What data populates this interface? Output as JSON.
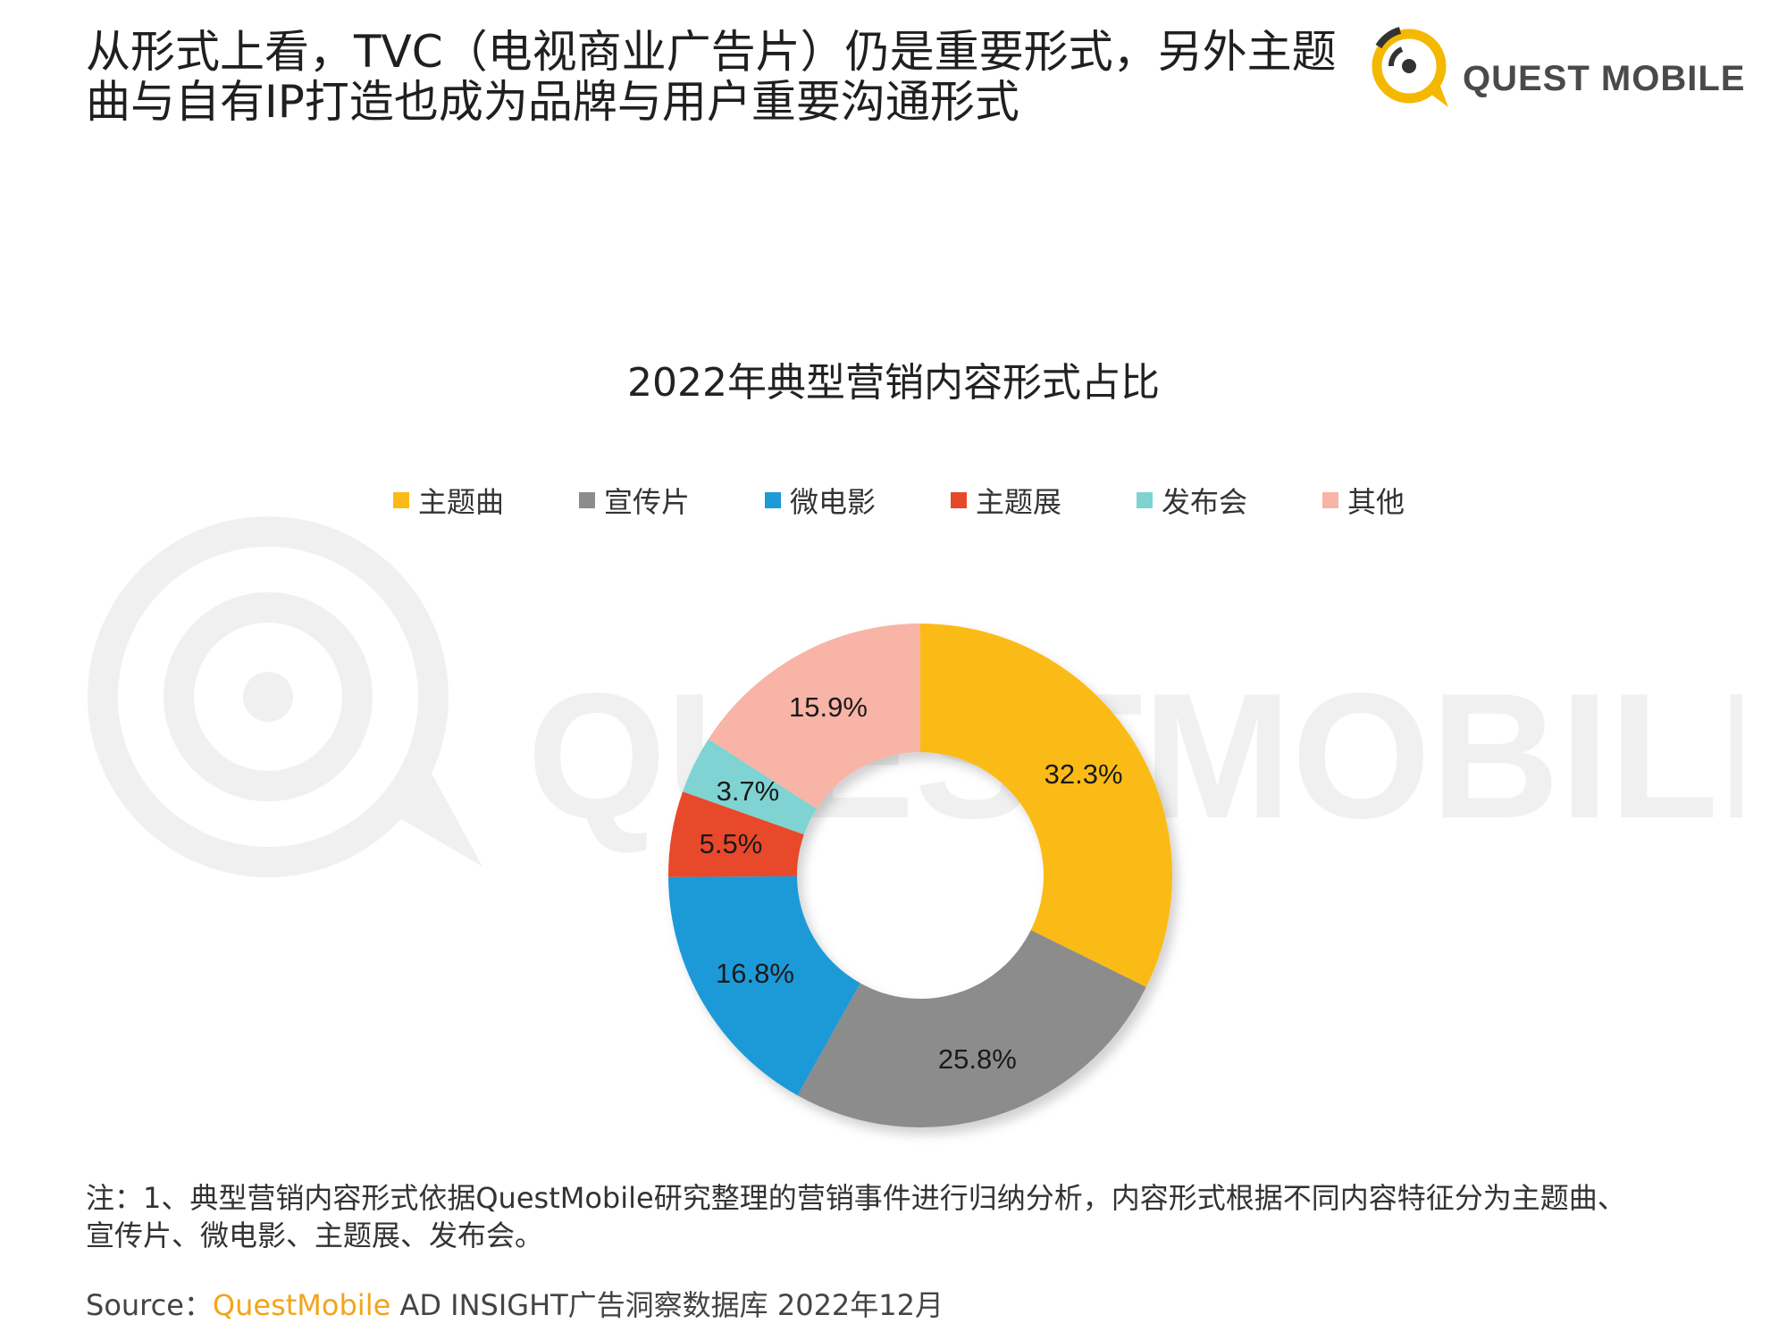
{
  "header": {
    "headline_line1": "从形式上看，TVC（电视商业广告片）仍是重要形式，另外主题",
    "headline_line2": "曲与自有IP打造也成为品牌与用户重要沟通形式",
    "logo_text": "QUEST MOBILE"
  },
  "watermark": {
    "text": "QUESTMOBILE"
  },
  "chart_data": {
    "type": "pie",
    "donut": true,
    "title": "2022年典型营销内容形式占比",
    "legend_position": "top",
    "unit": "%",
    "slices": [
      {
        "name": "主题曲",
        "value": 32.3,
        "label": "32.3%",
        "color": "#fbbb16"
      },
      {
        "name": "宣传片",
        "value": 25.8,
        "label": "25.8%",
        "color": "#8c8c8c"
      },
      {
        "name": "微电影",
        "value": 16.8,
        "label": "16.8%",
        "color": "#1d9ad8"
      },
      {
        "name": "主题展",
        "value": 5.5,
        "label": "5.5%",
        "color": "#e8482a"
      },
      {
        "name": "发布会",
        "value": 3.7,
        "label": "3.7%",
        "color": "#7fd3d3"
      },
      {
        "name": "其他",
        "value": 15.9,
        "label": "15.9%",
        "color": "#f7b4a7"
      }
    ]
  },
  "footer": {
    "note_line1": "注：1、典型营销内容形式依据QuestMobile研究整理的营销事件进行归纳分析，内容形式根据不同内容特征分为主题曲、",
    "note_line2": "宣传片、微电影、主题展、发布会。",
    "source_prefix": "Source：",
    "source_brand": "QuestMobile",
    "source_rest": " AD INSIGHT广告洞察数据库 2022年12月"
  }
}
